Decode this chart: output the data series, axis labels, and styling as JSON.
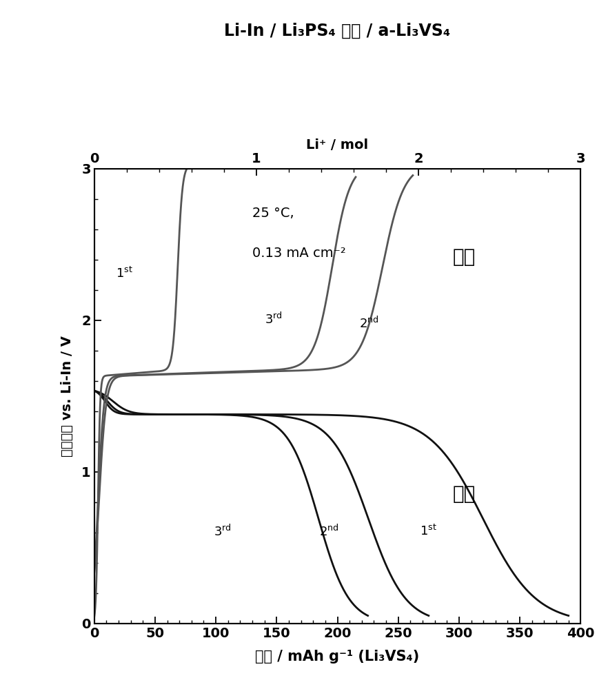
{
  "title_line1": "Li-In / Li₃PS₄ 玻璃 / a-Li₃VS₄",
  "top_xlabel": "Li⁺ / mol",
  "bottom_xlabel": "容量 / mAh g⁻¹ (Li₃VS₄)",
  "ylabel": "电池电压 vs. Li-In / V",
  "annotation1": "25 °C,",
  "annotation2": "0.13 mA cm⁻²",
  "charge_label": "充电",
  "discharge_label": "放电",
  "xlim_capacity": [
    0,
    400
  ],
  "xlim_li": [
    0,
    3.0
  ],
  "ylim": [
    0,
    3.0
  ],
  "xticks_capacity": [
    0,
    50,
    100,
    150,
    200,
    250,
    300,
    350,
    400
  ],
  "xticks_li": [
    0,
    1.0,
    2.0,
    3.0
  ],
  "yticks": [
    0.0,
    1.0,
    2.0,
    3.0
  ],
  "background_color": "#ffffff",
  "line_color_dark": "#111111",
  "line_color_gray": "#555555"
}
